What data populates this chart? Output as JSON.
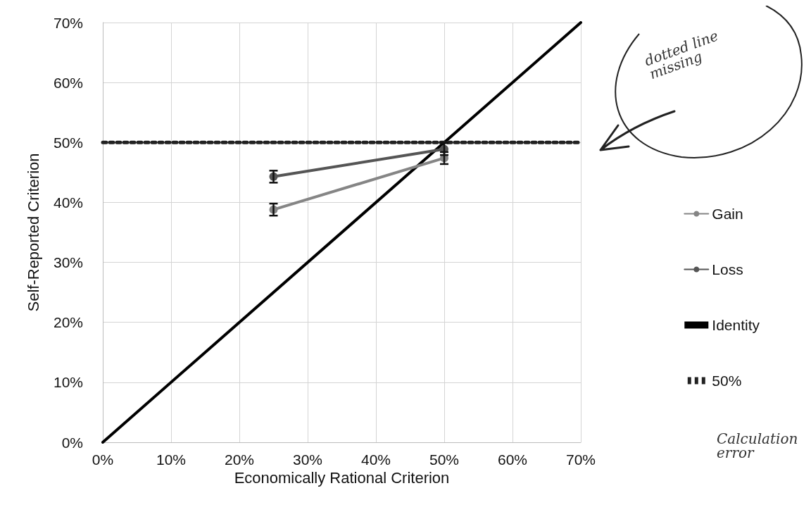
{
  "chart_data": {
    "type": "line",
    "xlabel": "Economically Rational Criterion",
    "ylabel": "Self-Reported Criterion",
    "xlim": [
      0,
      70
    ],
    "xticks": [
      {
        "value": 0,
        "label": "0%"
      },
      {
        "value": 10,
        "label": "10%"
      },
      {
        "value": 20,
        "label": "20%"
      },
      {
        "value": 30,
        "label": "30%"
      },
      {
        "value": 40,
        "label": "40%"
      },
      {
        "value": 50,
        "label": "50%"
      },
      {
        "value": 60,
        "label": "60%"
      },
      {
        "value": 70,
        "label": "70%"
      }
    ],
    "ylim": [
      0,
      70
    ],
    "yticks": [
      {
        "value": 0,
        "label": "0%"
      },
      {
        "value": 10,
        "label": "10%"
      },
      {
        "value": 20,
        "label": "20%"
      },
      {
        "value": 30,
        "label": "30%"
      },
      {
        "value": 40,
        "label": "40%"
      },
      {
        "value": 50,
        "label": "50%"
      },
      {
        "value": 60,
        "label": "60%"
      },
      {
        "value": 70,
        "label": "70%"
      }
    ],
    "grid": true,
    "legend": "right",
    "series": [
      {
        "name": "Gain",
        "color": "#858585",
        "x": [
          25,
          50
        ],
        "values": [
          38.8,
          47.4
        ],
        "errors": [
          1,
          1
        ],
        "marker": "circle",
        "line_style": "solid"
      },
      {
        "name": "Loss",
        "color": "#555555",
        "x": [
          25,
          50
        ],
        "values": [
          44.3,
          48.9
        ],
        "errors": [
          1,
          1
        ],
        "marker": "circle",
        "line_style": "solid"
      },
      {
        "name": "Identity",
        "color": "#000000",
        "x": [
          0,
          70
        ],
        "values": [
          0,
          70
        ],
        "marker": "none",
        "line_style": "solid"
      },
      {
        "name": "50%",
        "color": "#222222",
        "x": [
          0,
          70
        ],
        "values": [
          50,
          50
        ],
        "marker": "none",
        "line_style": "dotted"
      }
    ],
    "annotations": [
      "dotted line missing",
      "Calculation error"
    ]
  }
}
